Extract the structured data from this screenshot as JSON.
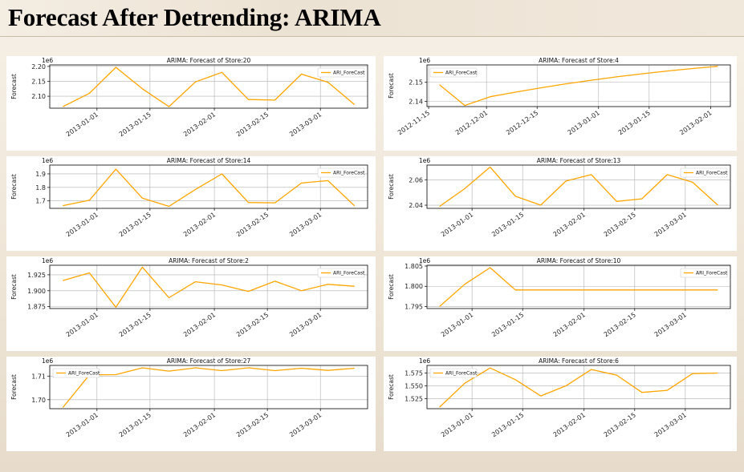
{
  "page": {
    "title": "Forecast After Detrending: ARIMA"
  },
  "chart_data": [
    {
      "type": "line",
      "title": "ARIMA: Forecast of Store:20",
      "ylabel": "Forecast",
      "offset": "1e6",
      "x": [
        "2012-12-23",
        "2012-12-30",
        "2013-01-06",
        "2013-01-13",
        "2013-01-20",
        "2013-01-27",
        "2013-02-03",
        "2013-02-10",
        "2013-02-17",
        "2013-02-24",
        "2013-03-03",
        "2013-03-10"
      ],
      "series": [
        {
          "name": "ARI_ForeCast",
          "values": [
            2.065,
            2.11,
            2.197,
            2.125,
            2.065,
            2.148,
            2.18,
            2.089,
            2.087,
            2.174,
            2.147,
            2.072
          ]
        }
      ],
      "xticks": [
        "2013-01-01",
        "2013-01-15",
        "2013-02-01",
        "2013-02-15",
        "2013-03-01"
      ],
      "yticks": [
        2.1,
        2.15,
        2.2
      ],
      "ytick_labels": [
        "2.10",
        "2.15",
        "2.20"
      ],
      "ylim": [
        2.06,
        2.205
      ],
      "legend": "upper right"
    },
    {
      "type": "line",
      "title": "ARIMA: Forecast of Store:4",
      "ylabel": "Forecast",
      "offset": "1e6",
      "x": [
        "2012-11-18",
        "2012-11-25",
        "2012-12-02",
        "2012-12-09",
        "2012-12-16",
        "2012-12-23",
        "2012-12-30",
        "2013-01-06",
        "2013-01-13",
        "2013-01-20",
        "2013-01-27",
        "2013-02-03"
      ],
      "series": [
        {
          "name": "ARI_ForeCast",
          "values": [
            2.1487,
            2.1378,
            2.1424,
            2.1448,
            2.1471,
            2.1492,
            2.1511,
            2.1529,
            2.1545,
            2.156,
            2.1573,
            2.1585
          ]
        }
      ],
      "xticks": [
        "2012-11-15",
        "2012-12-01",
        "2012-12-15",
        "2013-01-01",
        "2013-01-15",
        "2013-02-01"
      ],
      "yticks": [
        2.14,
        2.15
      ],
      "ytick_labels": [
        "2.14",
        "2.15"
      ],
      "ylim": [
        2.1372,
        2.1592
      ],
      "legend": "upper left"
    },
    {
      "type": "line",
      "title": "ARIMA: Forecast of Store:14",
      "ylabel": "Forecast",
      "offset": "1e6",
      "x": [
        "2012-12-23",
        "2012-12-30",
        "2013-01-06",
        "2013-01-13",
        "2013-01-20",
        "2013-01-27",
        "2013-02-03",
        "2013-02-10",
        "2013-02-17",
        "2013-02-24",
        "2013-03-03",
        "2013-03-10"
      ],
      "series": [
        {
          "name": "ARI_ForeCast",
          "values": [
            1.665,
            1.705,
            1.935,
            1.72,
            1.66,
            1.785,
            1.9,
            1.688,
            1.686,
            1.832,
            1.85,
            1.664
          ]
        }
      ],
      "xticks": [
        "2013-01-01",
        "2013-01-15",
        "2013-02-01",
        "2013-02-15",
        "2013-03-01"
      ],
      "yticks": [
        1.7,
        1.8,
        1.9
      ],
      "ytick_labels": [
        "1.7",
        "1.8",
        "1.9"
      ],
      "ylim": [
        1.645,
        1.965
      ],
      "legend": "upper right"
    },
    {
      "type": "line",
      "title": "ARIMA: Forecast of Store:13",
      "ylabel": "Forecast",
      "offset": "1e6",
      "x": [
        "2012-12-23",
        "2012-12-30",
        "2013-01-06",
        "2013-01-13",
        "2013-01-20",
        "2013-01-27",
        "2013-02-03",
        "2013-02-10",
        "2013-02-17",
        "2013-02-24",
        "2013-03-03",
        "2013-03-10"
      ],
      "series": [
        {
          "name": "ARI_ForeCast",
          "values": [
            2.039,
            2.053,
            2.07,
            2.047,
            2.04,
            2.059,
            2.064,
            2.043,
            2.045,
            2.064,
            2.058,
            2.04
          ]
        }
      ],
      "xticks": [
        "2013-01-01",
        "2013-01-15",
        "2013-02-01",
        "2013-02-15",
        "2013-03-01"
      ],
      "yticks": [
        2.04,
        2.06
      ],
      "ytick_labels": [
        "2.04",
        "2.06"
      ],
      "ylim": [
        2.0375,
        2.0715
      ],
      "legend": "upper right"
    },
    {
      "type": "line",
      "title": "ARIMA: Forecast of Store:2",
      "ylabel": "Forecast",
      "offset": "1e6",
      "x": [
        "2012-12-23",
        "2012-12-30",
        "2013-01-06",
        "2013-01-13",
        "2013-01-20",
        "2013-01-27",
        "2013-02-03",
        "2013-02-10",
        "2013-02-17",
        "2013-02-24",
        "2013-03-03",
        "2013-03-10"
      ],
      "series": [
        {
          "name": "ARI_ForeCast",
          "values": [
            1.916,
            1.928,
            1.874,
            1.937,
            1.889,
            1.914,
            1.909,
            1.899,
            1.915,
            1.9,
            1.91,
            1.907
          ]
        }
      ],
      "xticks": [
        "2013-01-01",
        "2013-01-15",
        "2013-02-01",
        "2013-02-15",
        "2013-03-01"
      ],
      "yticks": [
        1.875,
        1.9,
        1.925
      ],
      "ytick_labels": [
        "1.875",
        "1.900",
        "1.925"
      ],
      "ylim": [
        1.872,
        1.94
      ],
      "legend": "upper right"
    },
    {
      "type": "line",
      "title": "ARIMA: Forecast of Store:10",
      "ylabel": "Forecast",
      "offset": "1e6",
      "x": [
        "2012-12-23",
        "2012-12-30",
        "2013-01-06",
        "2013-01-13",
        "2013-01-20",
        "2013-01-27",
        "2013-02-03",
        "2013-02-10",
        "2013-02-17",
        "2013-02-24",
        "2013-03-03",
        "2013-03-10"
      ],
      "series": [
        {
          "name": "ARI_ForeCast",
          "values": [
            1.795,
            1.8005,
            1.8046,
            1.7991,
            1.7991,
            1.7991,
            1.7991,
            1.7991,
            1.7991,
            1.7991,
            1.7991,
            1.7991
          ]
        }
      ],
      "xticks": [
        "2013-01-01",
        "2013-01-15",
        "2013-02-01",
        "2013-02-15",
        "2013-03-01"
      ],
      "yticks": [
        1.795,
        1.8,
        1.805
      ],
      "ytick_labels": [
        "1.795",
        "1.800",
        "1.805"
      ],
      "ylim": [
        1.7945,
        1.8052
      ],
      "legend": "upper right"
    },
    {
      "type": "line",
      "title": "ARIMA: Forecast of Store:27",
      "ylabel": "Forecast",
      "offset": "1e6",
      "x": [
        "2012-12-23",
        "2012-12-30",
        "2013-01-06",
        "2013-01-13",
        "2013-01-20",
        "2013-01-27",
        "2013-02-03",
        "2013-02-10",
        "2013-02-17",
        "2013-02-24",
        "2013-03-03",
        "2013-03-10"
      ],
      "series": [
        {
          "name": "ARI_ForeCast",
          "values": [
            1.6967,
            1.7105,
            1.7106,
            1.7135,
            1.7121,
            1.7135,
            1.7123,
            1.7135,
            1.7123,
            1.7133,
            1.7124,
            1.7133
          ]
        }
      ],
      "xticks": [
        "2013-01-01",
        "2013-01-15",
        "2013-02-01",
        "2013-02-15",
        "2013-03-01"
      ],
      "yticks": [
        1.7,
        1.71
      ],
      "ytick_labels": [
        "1.70",
        "1.71"
      ],
      "ylim": [
        1.6962,
        1.7145
      ],
      "legend": "upper left"
    },
    {
      "type": "line",
      "title": "ARIMA: Forecast of Store:6",
      "ylabel": "Forecast",
      "offset": "1e6",
      "x": [
        "2012-12-23",
        "2012-12-30",
        "2013-01-06",
        "2013-01-13",
        "2013-01-20",
        "2013-01-27",
        "2013-02-03",
        "2013-02-10",
        "2013-02-17",
        "2013-02-24",
        "2013-03-03",
        "2013-03-10"
      ],
      "series": [
        {
          "name": "ARI_ForeCast",
          "values": [
            1.508,
            1.555,
            1.585,
            1.562,
            1.53,
            1.55,
            1.582,
            1.571,
            1.537,
            1.541,
            1.574,
            1.575
          ]
        }
      ],
      "xticks": [
        "2013-01-01",
        "2013-01-15",
        "2013-02-01",
        "2013-02-15",
        "2013-03-01"
      ],
      "yticks": [
        1.525,
        1.55,
        1.575
      ],
      "ytick_labels": [
        "1.525",
        "1.550",
        "1.575"
      ],
      "ylim": [
        1.505,
        1.59
      ],
      "legend": "upper left"
    }
  ],
  "colors": {
    "series": "#FFA500",
    "grid": "#b0b0b0",
    "background": "#ffffff"
  }
}
